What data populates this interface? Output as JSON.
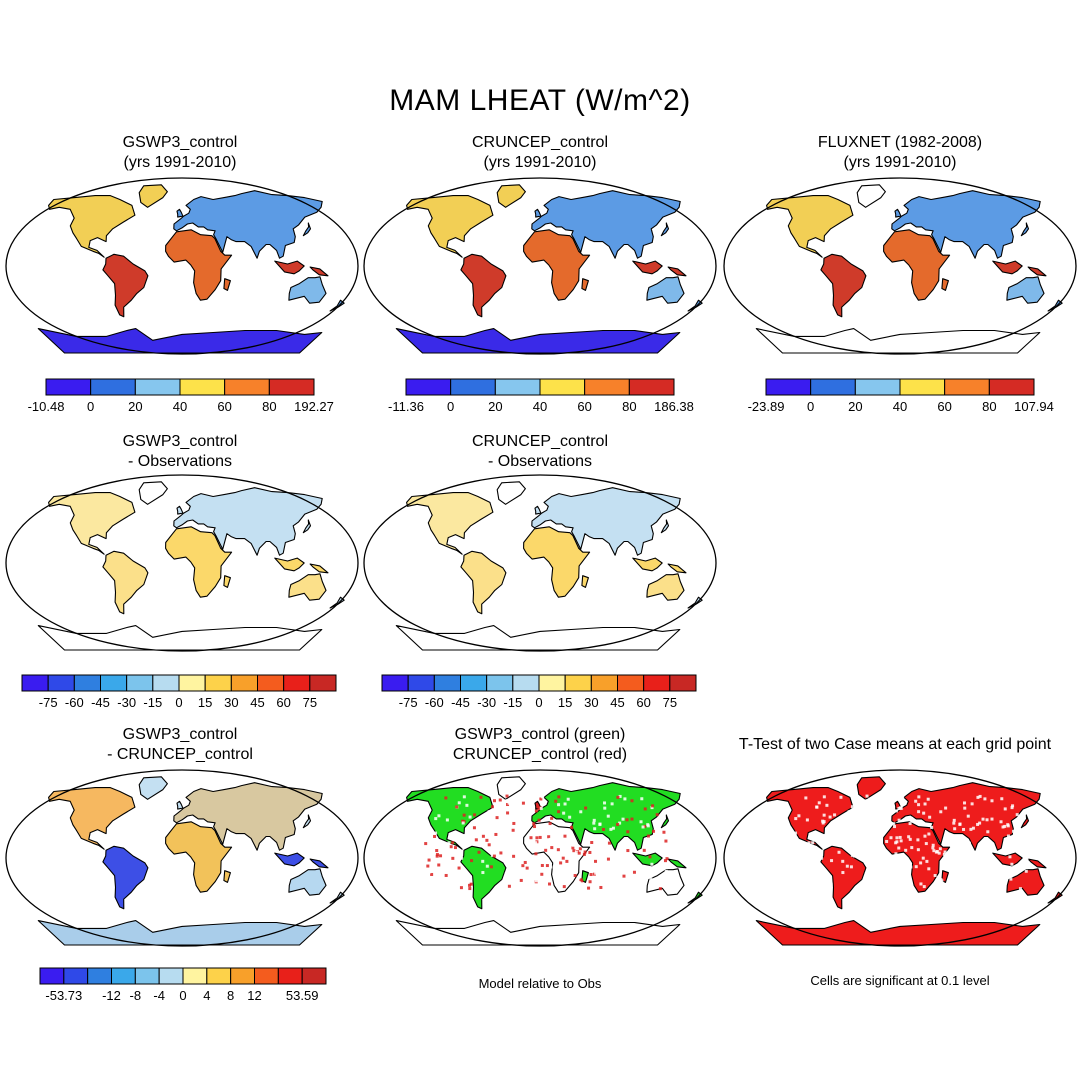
{
  "title": "MAM LHEAT (W/m^2)",
  "panels": [
    {
      "id": "gswp3",
      "title1": "GSWP3_control",
      "title2": "(yrs 1991-2010)"
    },
    {
      "id": "cruncep",
      "title1": "CRUNCEP_control",
      "title2": "(yrs 1991-2010)"
    },
    {
      "id": "fluxnet",
      "title1": "FLUXNET (1982-2008)",
      "title2": "(yrs 1991-2010)"
    },
    {
      "id": "gswp3-obs",
      "title1": "GSWP3_control",
      "title2": "- Observations"
    },
    {
      "id": "cruncep-obs",
      "title1": "CRUNCEP_control",
      "title2": "- Observations"
    },
    {
      "id": "gswp3-cruncep",
      "title1": "GSWP3_control",
      "title2": "- CRUNCEP_control"
    },
    {
      "id": "relative",
      "title1": "GSWP3_control (green)",
      "title2": "CRUNCEP_control (red)"
    },
    {
      "id": "ttest",
      "title1": "T-Test of two Case means at each grid point",
      "title2": ""
    }
  ],
  "colorbars": {
    "gswp3": {
      "labels": [
        "-10.48",
        "0",
        "20",
        "40",
        "60",
        "80",
        "192.27"
      ],
      "colors": [
        "#3a1cf0",
        "#2f6fe0",
        "#86c6ee",
        "#fde24a",
        "#f7812a",
        "#d52b24"
      ]
    },
    "cruncep": {
      "labels": [
        "-11.36",
        "0",
        "20",
        "40",
        "60",
        "80",
        "186.38"
      ],
      "colors": [
        "#3a1cf0",
        "#2f6fe0",
        "#86c6ee",
        "#fde24a",
        "#f7812a",
        "#d52b24"
      ]
    },
    "fluxnet": {
      "labels": [
        "-23.89",
        "0",
        "20",
        "40",
        "60",
        "80",
        "107.94"
      ],
      "colors": [
        "#3a1cf0",
        "#2f6fe0",
        "#86c6ee",
        "#fde24a",
        "#f7812a",
        "#d52b24"
      ]
    },
    "diff_obs": {
      "labels": [
        "-75",
        "-60",
        "-45",
        "-30",
        "-15",
        "0",
        "15",
        "30",
        "45",
        "60",
        "75"
      ],
      "colors": [
        "#3a1cf0",
        "#2f49e8",
        "#2f7fe0",
        "#3aa8ea",
        "#7cc4ec",
        "#b7dcf0",
        "#fff4a0",
        "#fdd24a",
        "#f8a02a",
        "#f45c1e",
        "#e8201a",
        "#c82824"
      ]
    },
    "diff_case": {
      "labels": [
        "-53.73",
        "",
        "-12",
        "-8",
        "-4",
        "0",
        "4",
        "8",
        "12",
        "",
        "53.59"
      ],
      "colors": [
        "#3a1cf0",
        "#2f49e8",
        "#2f7fe0",
        "#3aa8ea",
        "#7cc4ec",
        "#b7dcf0",
        "#fff4a0",
        "#fdd24a",
        "#f8a02a",
        "#f45c1e",
        "#e8201a",
        "#c82824"
      ]
    }
  },
  "notes": {
    "relative": "Model relative to Obs",
    "ttest": "Cells are significant at 0.1 level"
  }
}
